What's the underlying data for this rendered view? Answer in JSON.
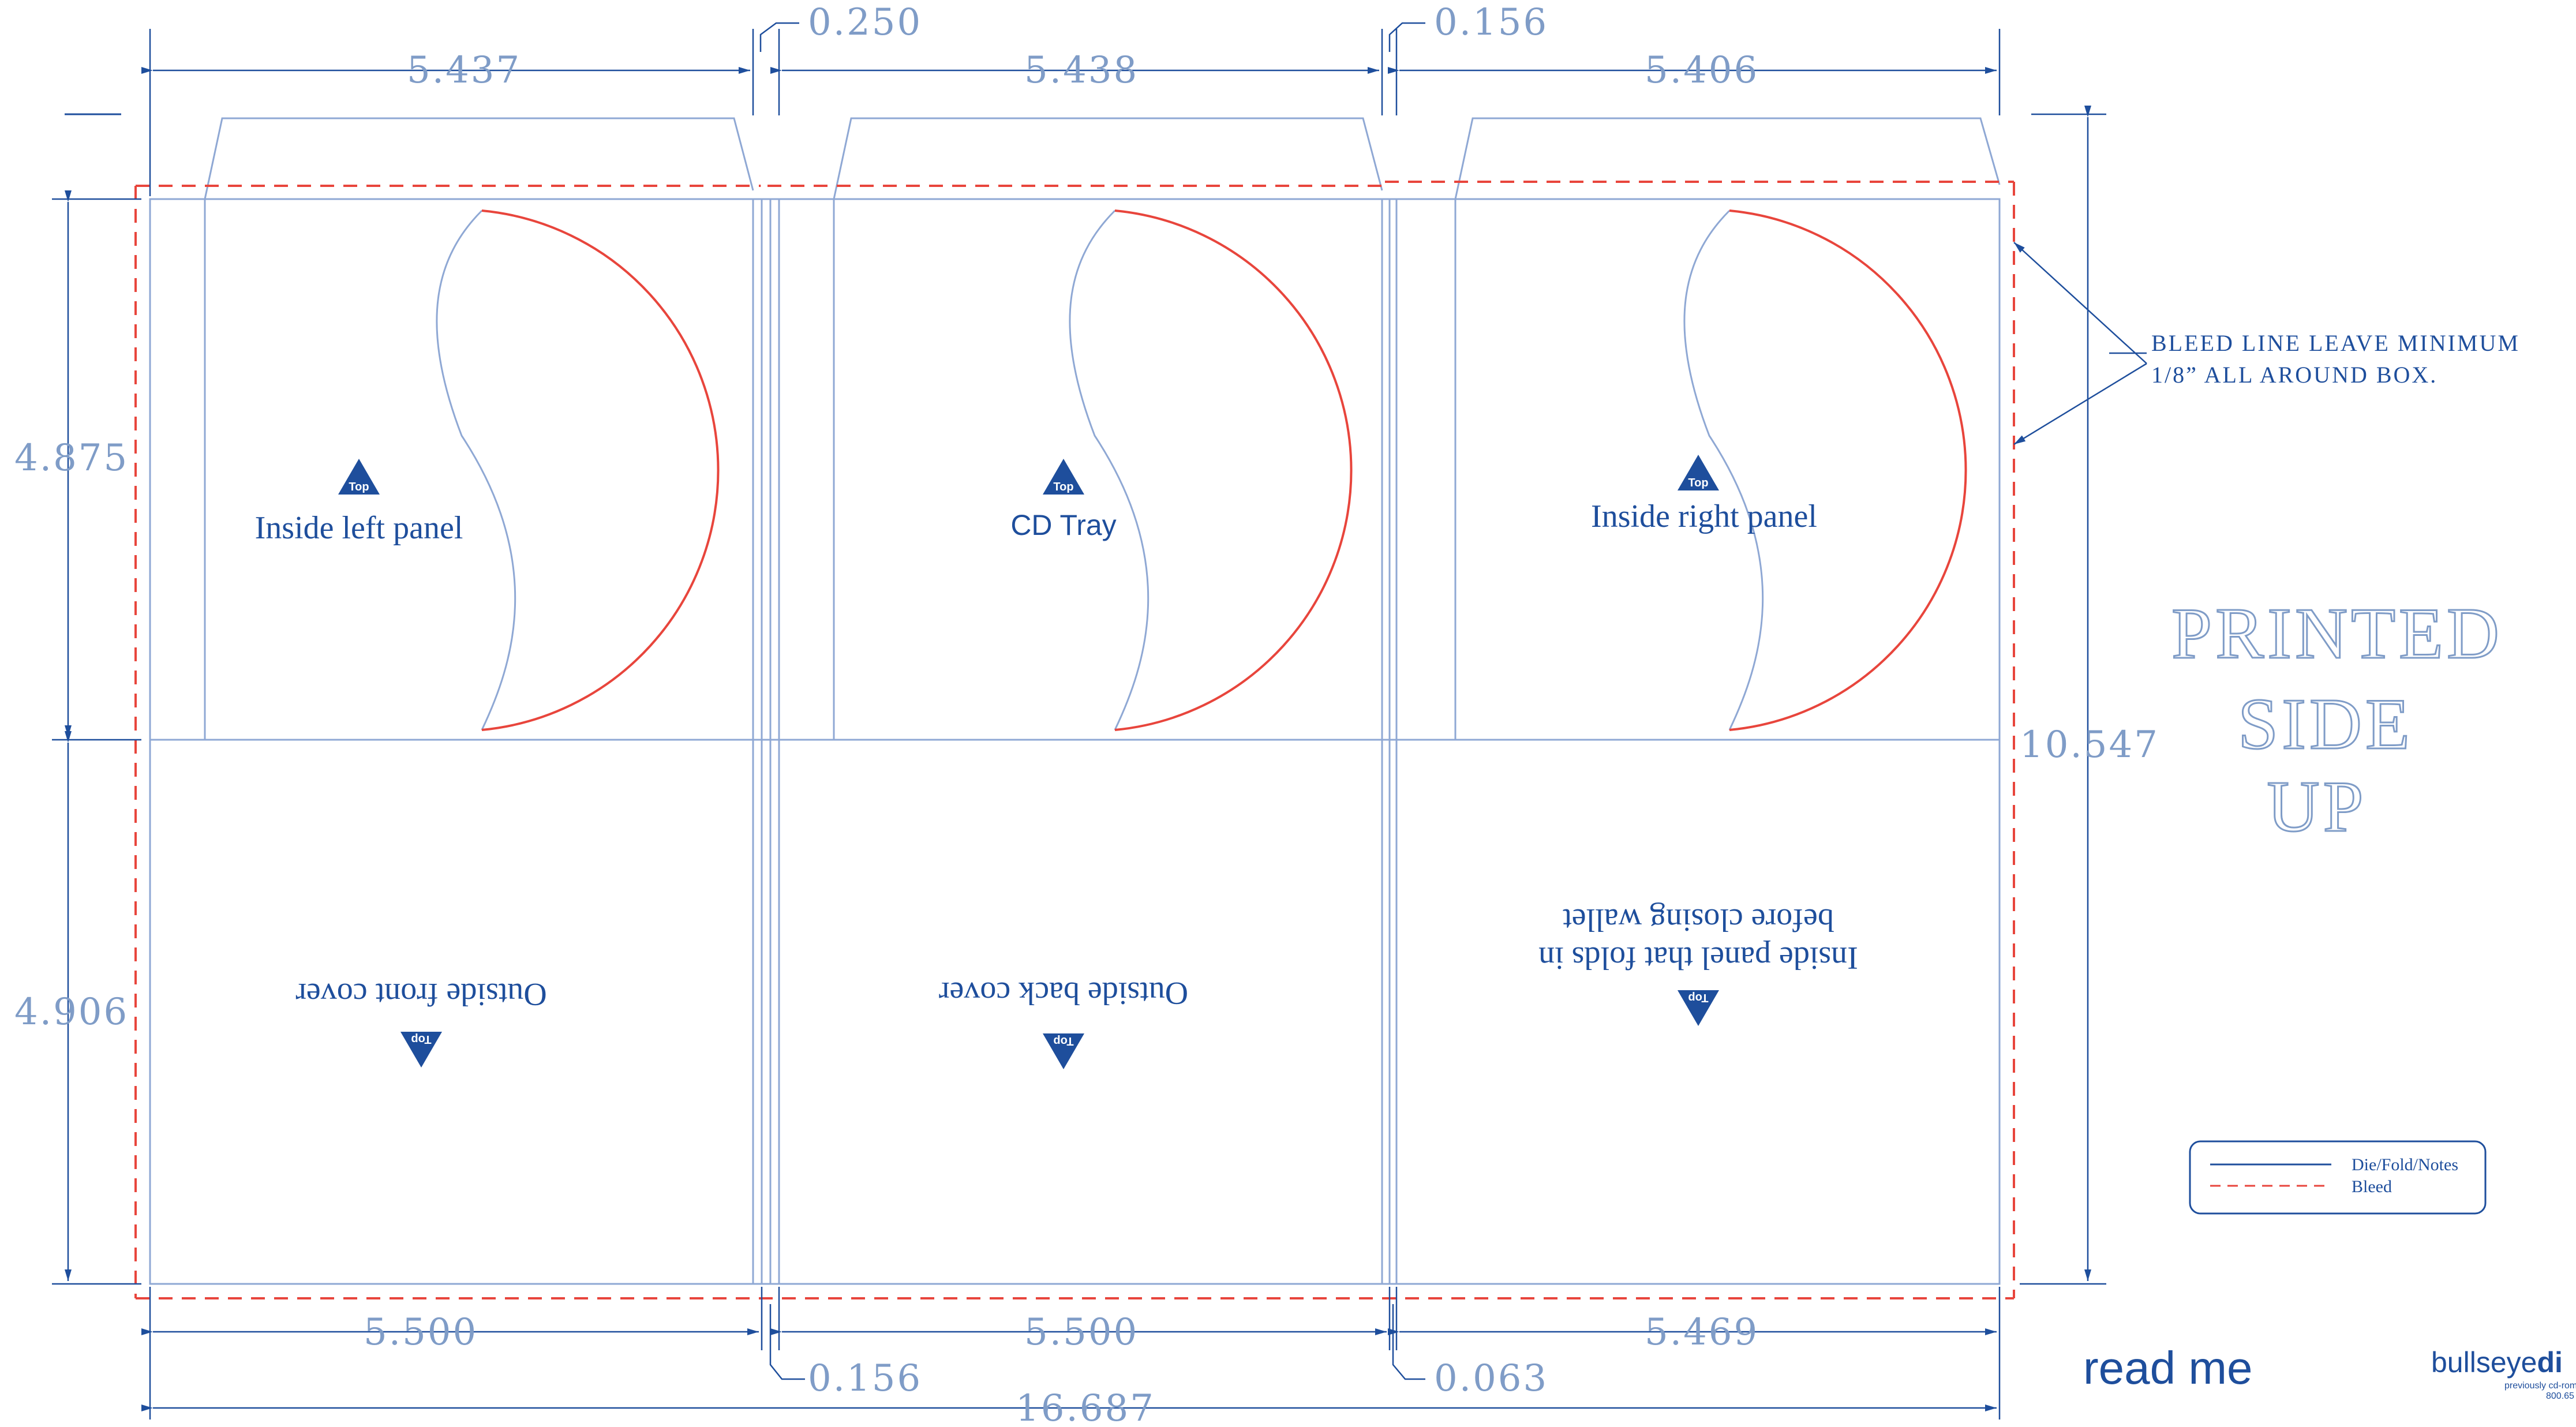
{
  "dimensions": {
    "top_left_width": "5.437",
    "top_gap_1": "0.250",
    "top_center_width": "5.438",
    "top_gap_2": "0.156",
    "top_right_width": "5.406",
    "left_upper_height": "4.875",
    "left_lower_height": "4.906",
    "right_total_height": "10.547",
    "bottom_left_width": "5.500",
    "bottom_center_width": "5.500",
    "bottom_right_width": "5.469",
    "bottom_gap_1": "0.156",
    "bottom_gap_2": "0.063",
    "overall_width": "16.687"
  },
  "panels": {
    "inside_left": "Inside left panel",
    "cd_tray": "CD Tray",
    "inside_right": "Inside right panel",
    "outside_front": "Outside front cover",
    "outside_back": "Outside back cover",
    "inside_fold_line1": "Inside panel that folds in",
    "inside_fold_line2": "before closing wallet",
    "top_marker": "Top"
  },
  "notes": {
    "bleed_line1": "BLEED LINE LEAVE MINIMUM",
    "bleed_line2": "1/8” ALL AROUND BOX.",
    "printed_side_up": [
      "PRINTED",
      "SIDE",
      "UP"
    ]
  },
  "legend": {
    "die": "Die/Fold/Notes",
    "bleed": "Bleed"
  },
  "footer": {
    "read_me": "read me",
    "logo_part1": "bullseye",
    "logo_part2": "di",
    "logo_sub1": "previously cd-rom",
    "logo_sub2": "800.65"
  },
  "colors": {
    "die_line": "#8fa8d4",
    "bleed_line": "#e8453c",
    "text": "#1e4e9c",
    "dimension": "#7f9cc7"
  }
}
